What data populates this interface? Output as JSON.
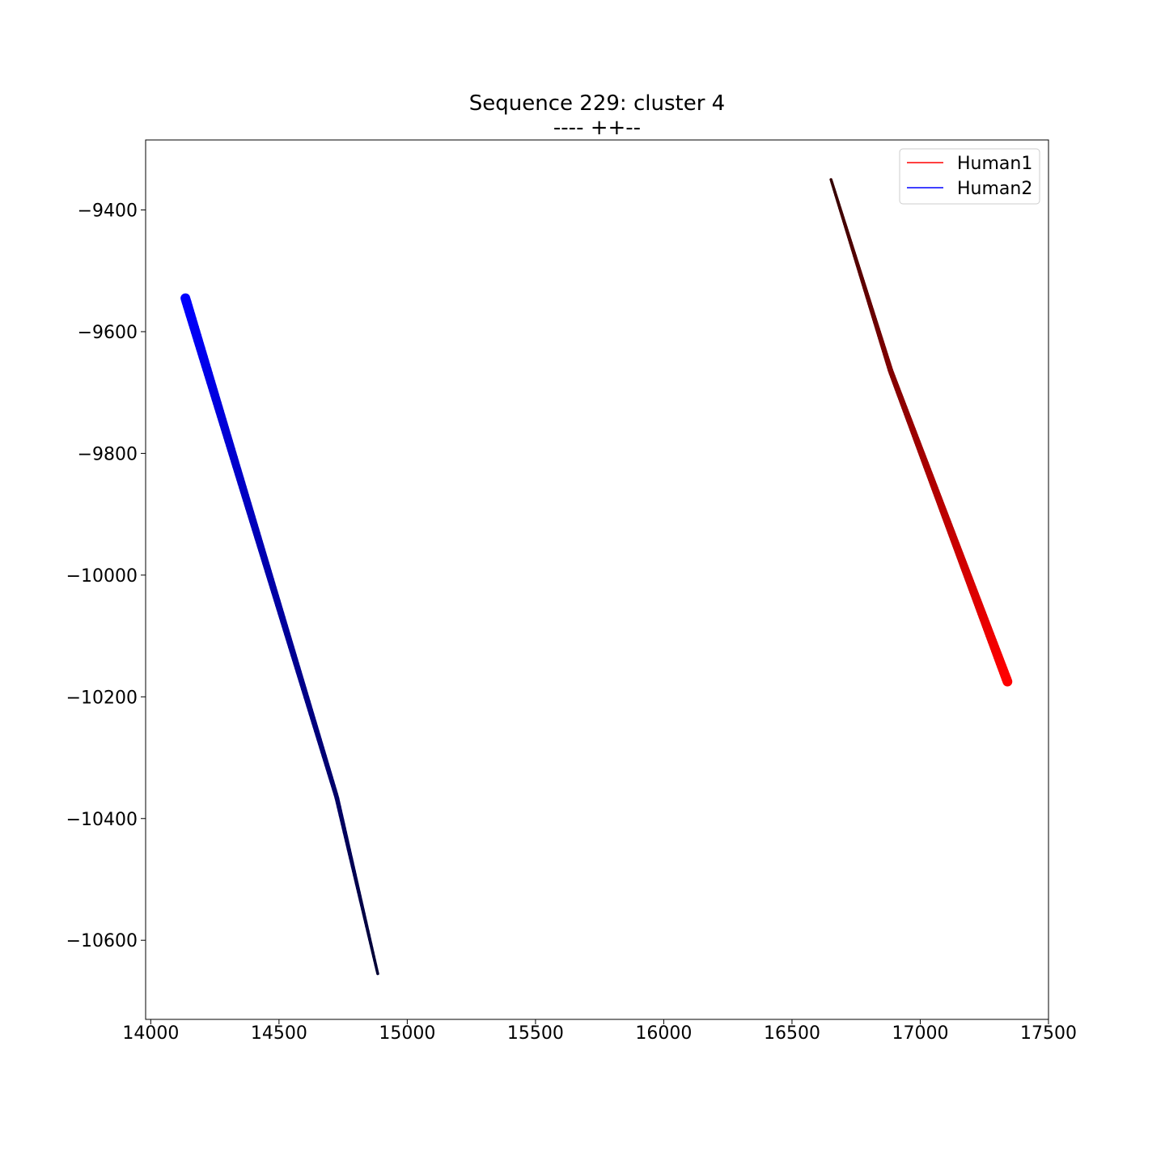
{
  "chart_data": {
    "type": "line",
    "title": "Sequence 229: cluster 4",
    "subtitle": "---- ++--",
    "xlabel": "",
    "ylabel": "",
    "xlim": [
      13980,
      17500
    ],
    "ylim": [
      -10730,
      -9285
    ],
    "xticks": [
      14000,
      14500,
      15000,
      15500,
      16000,
      16500,
      17000,
      17500
    ],
    "yticks": [
      -9400,
      -9600,
      -9800,
      -10000,
      -10200,
      -10400,
      -10600
    ],
    "xtick_labels": [
      "14000",
      "14500",
      "15000",
      "15500",
      "16000",
      "16500",
      "17000",
      "17500"
    ],
    "ytick_labels": [
      "−9400",
      "−9600",
      "−9800",
      "−10000",
      "−10200",
      "−10400",
      "−10600"
    ],
    "grid": false,
    "legend_position": "top-right",
    "series": [
      {
        "name": "Human1",
        "color": "#ff0000",
        "start_color": "#330000",
        "end_color": "#ff0000",
        "x": [
          16652,
          16885,
          17340
        ],
        "y": [
          -9350,
          -9665,
          -10175
        ]
      },
      {
        "name": "Human2",
        "color": "#0000ff",
        "start_color": "#0000ff",
        "end_color": "#000033",
        "x": [
          14135,
          14725,
          14885
        ],
        "y": [
          -9545,
          -10365,
          -10655
        ]
      }
    ]
  }
}
